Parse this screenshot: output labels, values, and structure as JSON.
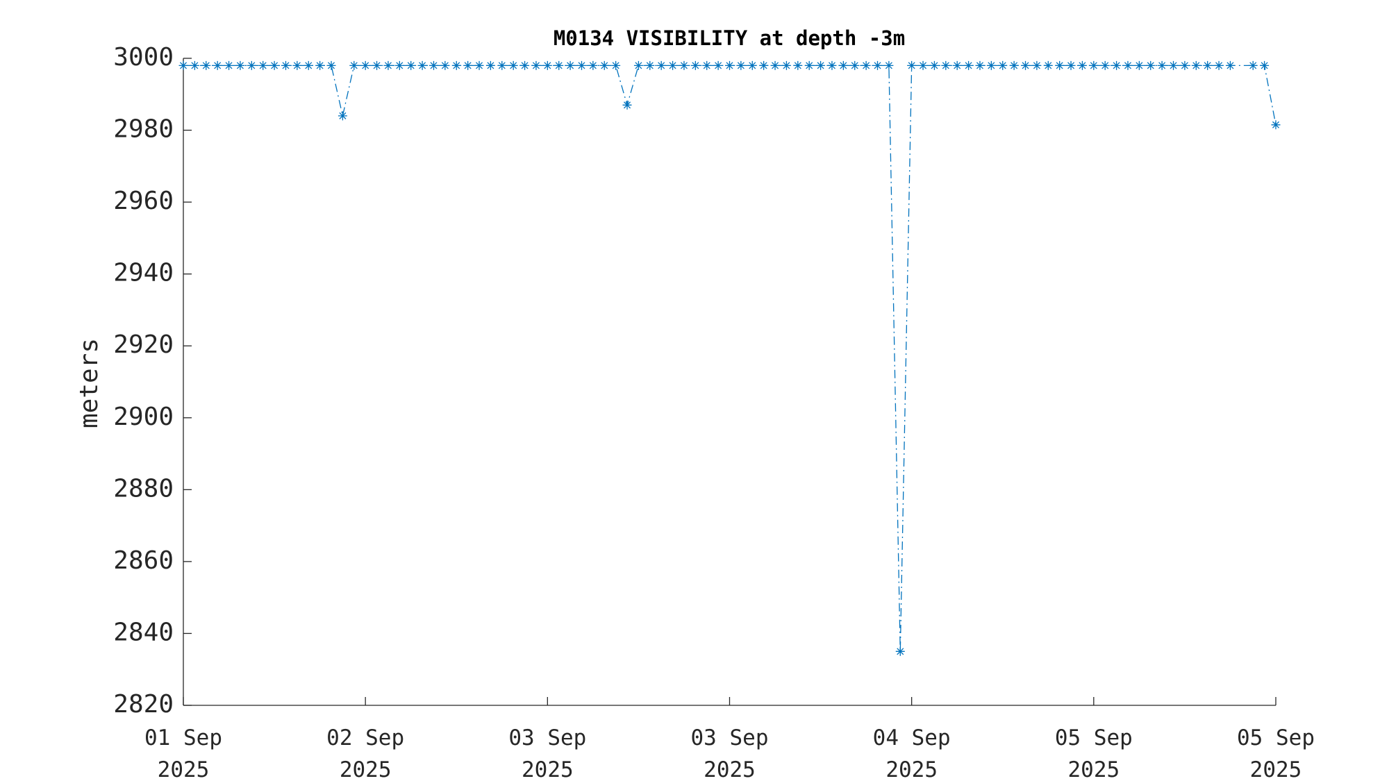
{
  "chart_data": {
    "type": "line",
    "title": "M0134 VISIBILITY at depth -3m",
    "y_label": "meters",
    "x": [
      0,
      1,
      2,
      3,
      4,
      5,
      6,
      7,
      8,
      9,
      10,
      11,
      12,
      13,
      14,
      15,
      16,
      17,
      18,
      19,
      20,
      21,
      22,
      23,
      24,
      25,
      26,
      27,
      28,
      29,
      30,
      31,
      32,
      33,
      34,
      35,
      36,
      37,
      38,
      39,
      40,
      41,
      42,
      43,
      44,
      45,
      46,
      47,
      48,
      49,
      50,
      51,
      52,
      53,
      54,
      55,
      56,
      57,
      58,
      59,
      60,
      61,
      62,
      63,
      64,
      65,
      66,
      67,
      68,
      69,
      70,
      71,
      72,
      73,
      74,
      75,
      76,
      77,
      78,
      79,
      80,
      81,
      82,
      83,
      84,
      85,
      86,
      87,
      88,
      89,
      90,
      91,
      92,
      94,
      95,
      96
    ],
    "series": [
      {
        "name": "visibility",
        "color": "#0072bd",
        "values": [
          2998,
          2998,
          2998,
          2998,
          2998,
          2998,
          2998,
          2998,
          2998,
          2998,
          2998,
          2998,
          2998,
          2998,
          2984,
          2998,
          2998,
          2998,
          2998,
          2998,
          2998,
          2998,
          2998,
          2998,
          2998,
          2998,
          2998,
          2998,
          2998,
          2998,
          2998,
          2998,
          2998,
          2998,
          2998,
          2998,
          2998,
          2998,
          2998,
          2987,
          2998,
          2998,
          2998,
          2998,
          2998,
          2998,
          2998,
          2998,
          2998,
          2998,
          2998,
          2998,
          2998,
          2998,
          2998,
          2998,
          2998,
          2998,
          2998,
          2998,
          2998,
          2998,
          2998,
          2835,
          2998,
          2998,
          2998,
          2998,
          2998,
          2998,
          2998,
          2998,
          2998,
          2998,
          2998,
          2998,
          2998,
          2998,
          2998,
          2998,
          2998,
          2998,
          2998,
          2998,
          2998,
          2998,
          2998,
          2998,
          2998,
          2998,
          2998,
          2998,
          2998,
          2998,
          2998,
          2981.5
        ]
      }
    ],
    "xlim": [
      0,
      96
    ],
    "xticks": [
      {
        "value": 0,
        "label": "01 Sep\n2025"
      },
      {
        "value": 16,
        "label": "02 Sep\n2025"
      },
      {
        "value": 32,
        "label": "03 Sep\n2025"
      },
      {
        "value": 48,
        "label": "03 Sep\n2025"
      },
      {
        "value": 64,
        "label": "04 Sep\n2025"
      },
      {
        "value": 80,
        "label": "05 Sep\n2025"
      },
      {
        "value": 96,
        "label": "05 Sep\n2025"
      }
    ],
    "ylim": [
      2820,
      3000
    ],
    "yticks": [
      2820,
      2840,
      2860,
      2880,
      2900,
      2920,
      2940,
      2960,
      2980,
      3000
    ],
    "line_style": "dash-dot",
    "marker": "asterisk"
  }
}
